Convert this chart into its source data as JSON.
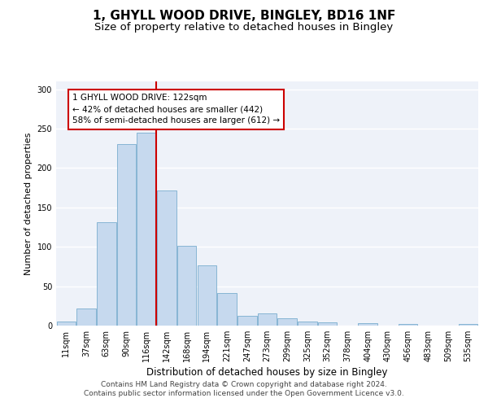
{
  "title": "1, GHYLL WOOD DRIVE, BINGLEY, BD16 1NF",
  "subtitle": "Size of property relative to detached houses in Bingley",
  "xlabel": "Distribution of detached houses by size in Bingley",
  "ylabel": "Number of detached properties",
  "bar_color": "#c6d9ee",
  "bar_edge_color": "#7aadce",
  "background_color": "#eef2f9",
  "grid_color": "#ffffff",
  "categories": [
    "11sqm",
    "37sqm",
    "63sqm",
    "90sqm",
    "116sqm",
    "142sqm",
    "168sqm",
    "194sqm",
    "221sqm",
    "247sqm",
    "273sqm",
    "299sqm",
    "325sqm",
    "352sqm",
    "378sqm",
    "404sqm",
    "430sqm",
    "456sqm",
    "483sqm",
    "509sqm",
    "535sqm"
  ],
  "values": [
    5,
    22,
    131,
    230,
    245,
    172,
    101,
    76,
    41,
    12,
    15,
    9,
    5,
    4,
    0,
    3,
    0,
    2,
    0,
    0,
    2
  ],
  "vline_color": "#cc0000",
  "annotation_text": "1 GHYLL WOOD DRIVE: 122sqm\n← 42% of detached houses are smaller (442)\n58% of semi-detached houses are larger (612) →",
  "annotation_box_color": "#ffffff",
  "annotation_box_edge": "#cc0000",
  "ylim": [
    0,
    310
  ],
  "yticks": [
    0,
    50,
    100,
    150,
    200,
    250,
    300
  ],
  "footer_text": "Contains HM Land Registry data © Crown copyright and database right 2024.\nContains public sector information licensed under the Open Government Licence v3.0.",
  "title_fontsize": 11,
  "subtitle_fontsize": 9.5,
  "xlabel_fontsize": 8.5,
  "ylabel_fontsize": 8,
  "tick_fontsize": 7,
  "annotation_fontsize": 7.5,
  "footer_fontsize": 6.5
}
